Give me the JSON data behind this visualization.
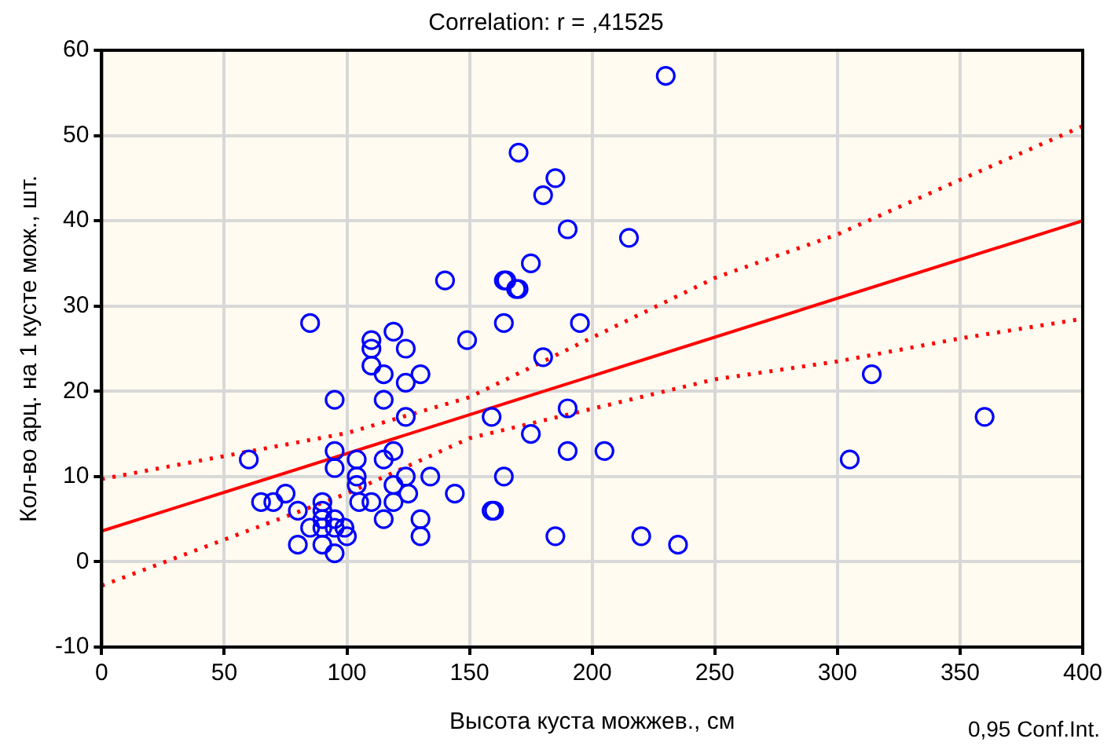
{
  "chart_data": {
    "type": "scatter",
    "title": "Correlation: r = ,41525",
    "xlabel": "Высота куста можжев., см",
    "ylabel": "Кол-во арц. на 1 кусте мож., шт.",
    "annotations": [
      "0,95 Conf.Int."
    ],
    "xlim": [
      0,
      400
    ],
    "xticks": [
      0,
      50,
      100,
      150,
      200,
      250,
      300,
      350,
      400
    ],
    "ylim": [
      -10,
      60
    ],
    "yticks": [
      -10,
      0,
      10,
      20,
      30,
      40,
      50,
      60
    ],
    "grid": true,
    "legend": false,
    "series": [
      {
        "marker": "circle",
        "color": "#0000ff",
        "x": [
          140,
          164,
          169,
          85,
          164,
          119,
          110,
          110,
          124,
          149,
          110,
          115,
          130,
          124,
          95,
          115,
          124,
          159,
          60,
          95,
          95,
          104,
          104,
          104,
          115,
          119,
          124,
          134,
          144,
          164,
          65,
          70,
          75,
          80,
          90,
          105,
          110,
          119,
          125,
          119,
          159,
          85,
          90,
          95,
          90,
          95,
          99,
          100,
          80,
          90,
          95,
          115,
          130,
          130,
          90,
          230,
          170,
          185,
          180,
          190,
          215,
          175,
          165,
          170,
          195,
          180,
          190,
          175,
          190,
          205,
          160,
          185,
          220,
          235,
          314,
          305,
          360
        ],
        "values": [
          33,
          33,
          32,
          28,
          28,
          27,
          26,
          25,
          25,
          26,
          23,
          22,
          22,
          21,
          19,
          19,
          17,
          17,
          12,
          13,
          11,
          12,
          10,
          9,
          12,
          13,
          10,
          10,
          8,
          10,
          7,
          7,
          8,
          6,
          7,
          7,
          7,
          7,
          8,
          9,
          6,
          4,
          5,
          5,
          4,
          4,
          4,
          3,
          2,
          2,
          1,
          5,
          5,
          3,
          6,
          57,
          48,
          45,
          43,
          39,
          38,
          35,
          33,
          32,
          28,
          24,
          18,
          15,
          13,
          13,
          6,
          3,
          3,
          2,
          22,
          12,
          17
        ]
      },
      {
        "type": "line",
        "marker": "none",
        "line_style": "solid",
        "color": "#ff0000",
        "x": [
          0,
          400
        ],
        "values": [
          3.6,
          40
        ]
      },
      {
        "type": "line",
        "marker": "none",
        "line_style": "dotted",
        "color": "#ff0000",
        "x": [
          0,
          100,
          150,
          250,
          300,
          350,
          400
        ],
        "values": [
          9.7,
          15.1,
          19.3,
          33.3,
          38.4,
          44.8,
          51.1
        ]
      },
      {
        "type": "line",
        "marker": "none",
        "line_style": "dotted",
        "color": "#ff0000",
        "x": [
          0,
          100,
          150,
          250,
          300,
          350,
          400
        ],
        "values": [
          -2.8,
          8,
          14.5,
          21.4,
          23.5,
          26.2,
          28.5
        ]
      }
    ]
  }
}
